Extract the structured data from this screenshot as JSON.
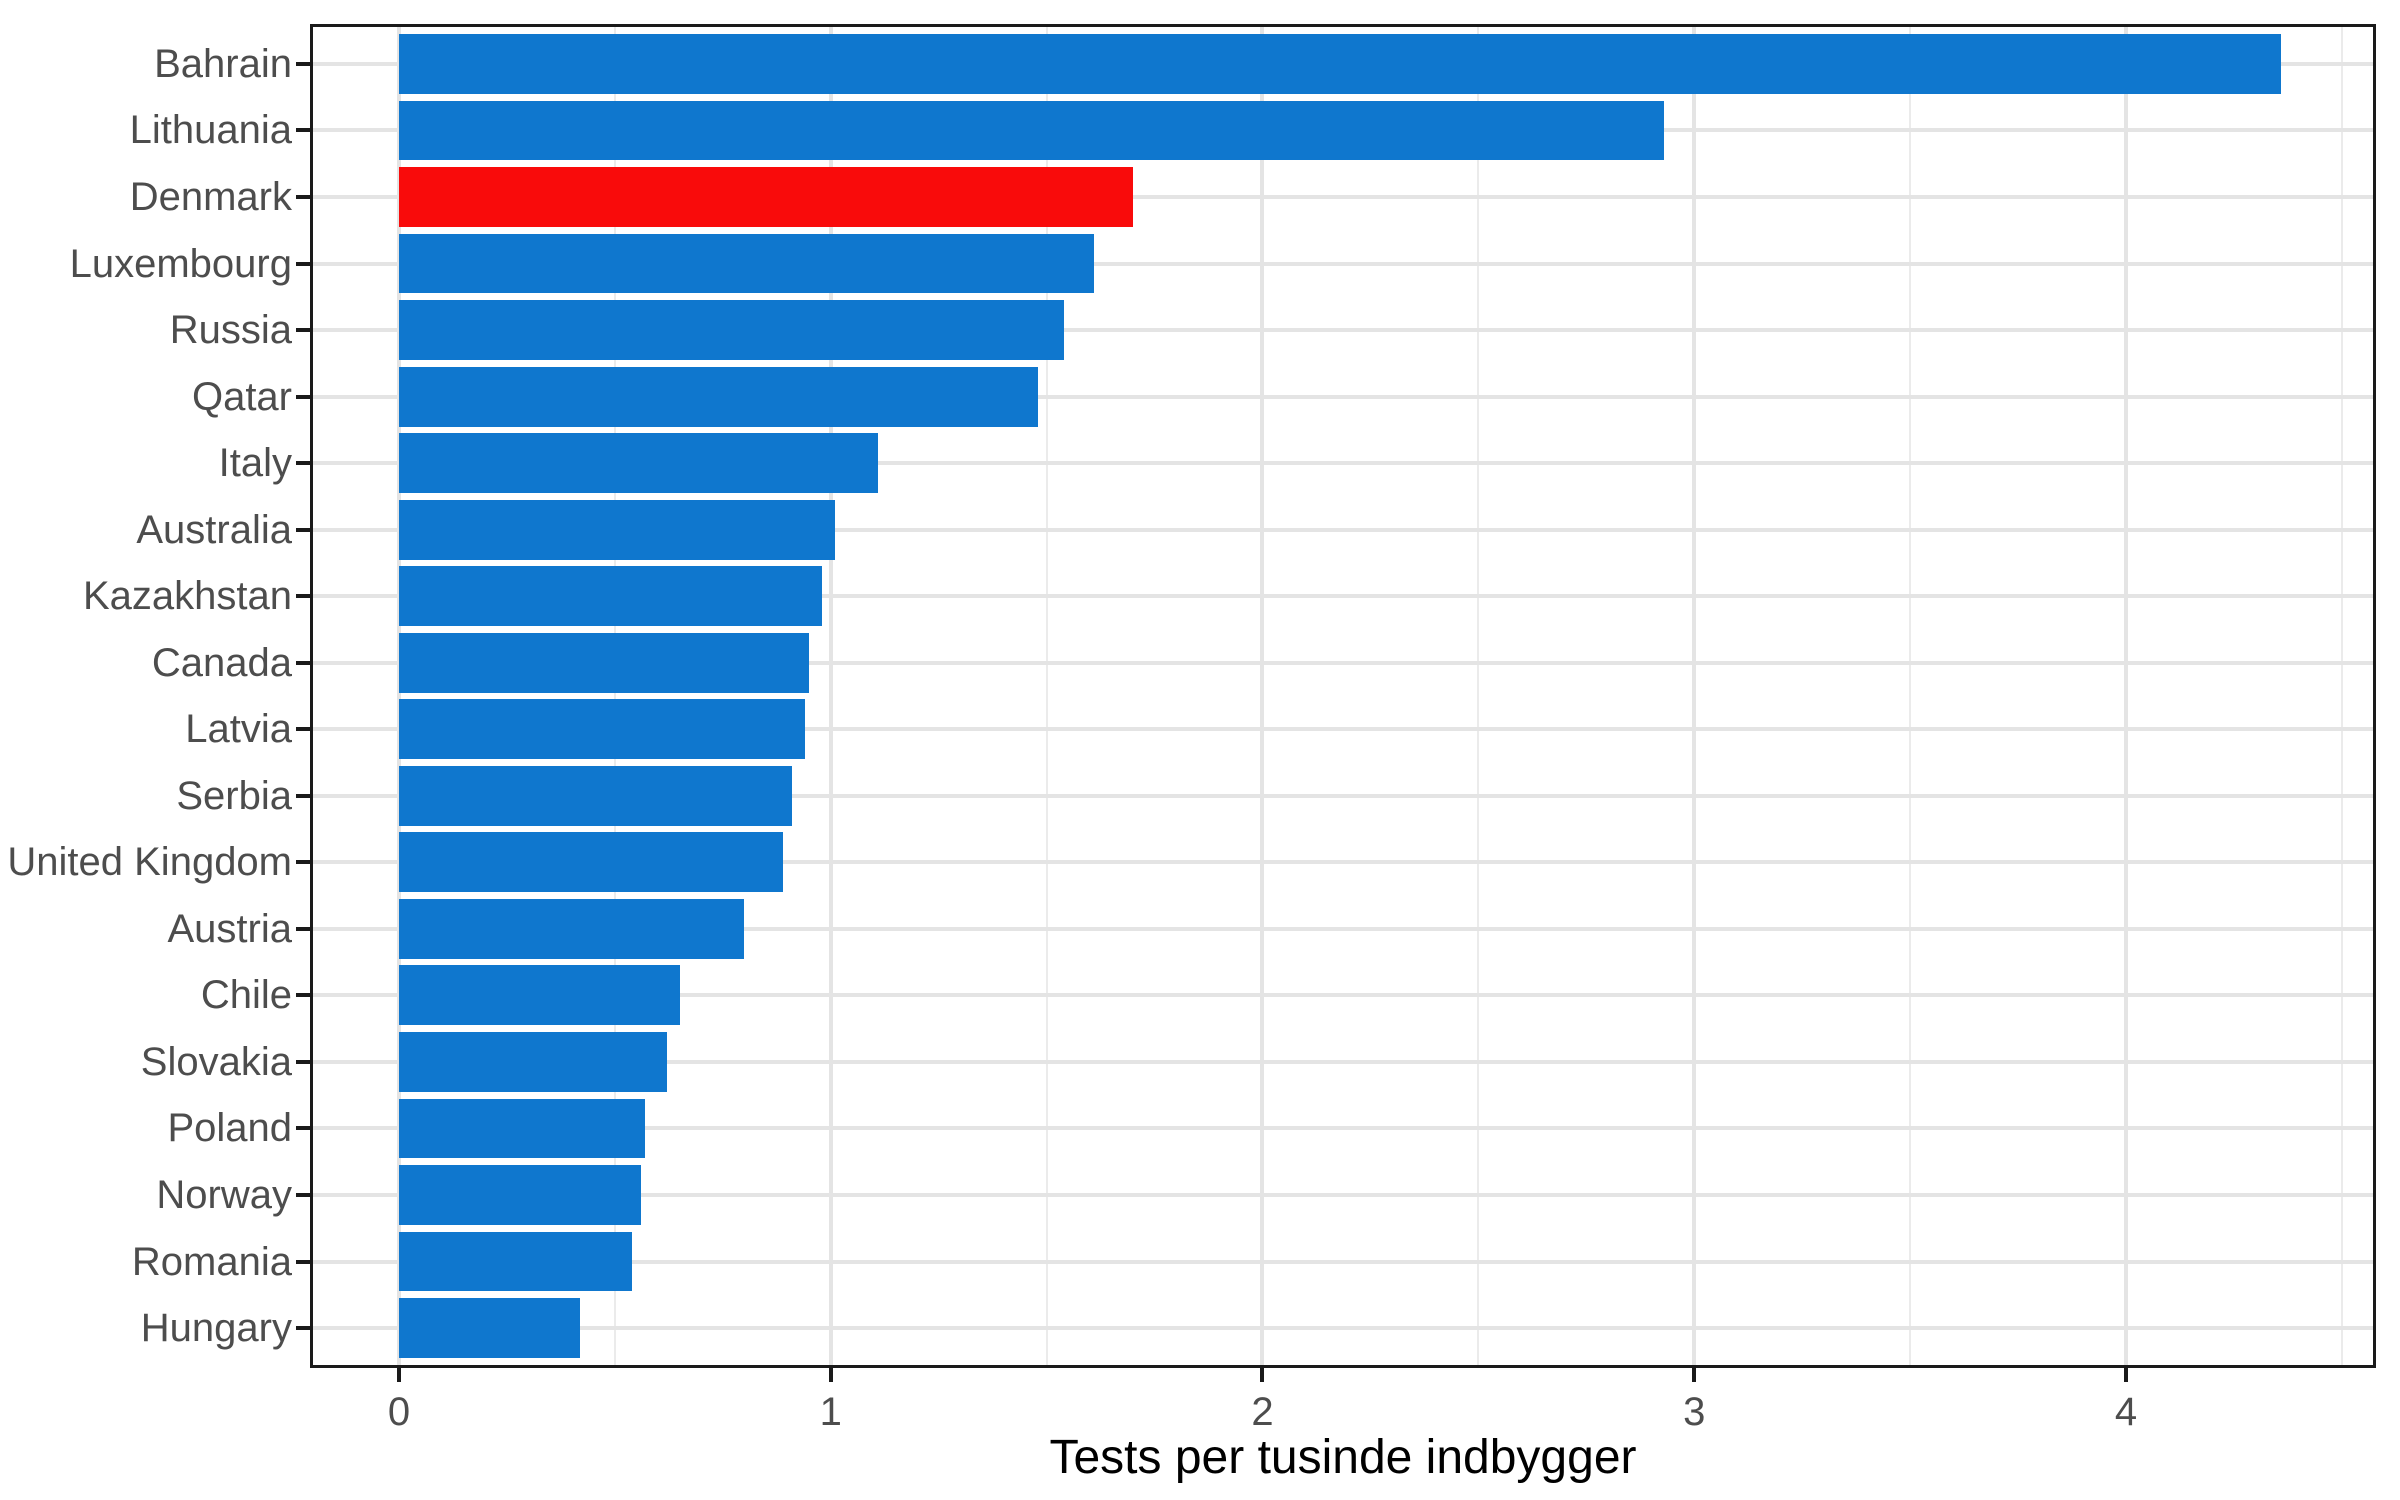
{
  "figure": {
    "background": "#ffffff",
    "panel_border_color": "#1a1a1a",
    "grid_major_color": "#e4e4e4",
    "grid_minor_color": "#ebebeb",
    "tick_color": "#1a1a1a",
    "axis_text_color": "#4d4d4d",
    "axis_title_color": "#000000"
  },
  "chart_data": {
    "type": "bar",
    "orientation": "horizontal",
    "title": "",
    "xlabel": "Tests per tusinde indbygger",
    "ylabel": "",
    "categories": [
      "Bahrain",
      "Lithuania",
      "Denmark",
      "Luxembourg",
      "Russia",
      "Qatar",
      "Italy",
      "Australia",
      "Kazakhstan",
      "Canada",
      "Latvia",
      "Serbia",
      "United Kingdom",
      "Austria",
      "Chile",
      "Slovakia",
      "Poland",
      "Norway",
      "Romania",
      "Hungary"
    ],
    "values": [
      4.36,
      2.93,
      1.7,
      1.61,
      1.54,
      1.48,
      1.11,
      1.01,
      0.98,
      0.95,
      0.94,
      0.91,
      0.89,
      0.8,
      0.65,
      0.62,
      0.57,
      0.56,
      0.54,
      0.42
    ],
    "default_color": "#0f77ce",
    "highlight": {
      "category": "Denmark",
      "color": "#f90b0b"
    },
    "xlim": [
      -0.206,
      4.579
    ],
    "x_major_ticks": [
      0,
      1,
      2,
      3,
      4
    ],
    "x_major_tick_labels": [
      "0",
      "1",
      "2",
      "3",
      "4"
    ],
    "x_minor_ticks": [
      0.5,
      1.5,
      2.5,
      3.5,
      4.5
    ],
    "bar_width_fraction": 0.9,
    "category_expansion": 0.6,
    "grid": true,
    "legend": "none"
  }
}
